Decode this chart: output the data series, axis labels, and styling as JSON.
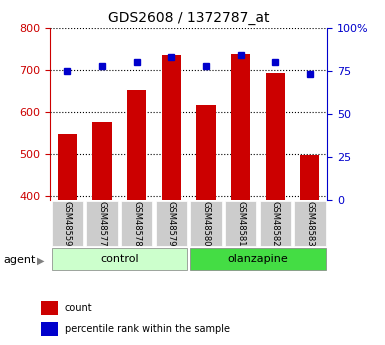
{
  "title": "GDS2608 / 1372787_at",
  "samples": [
    "GSM48559",
    "GSM48577",
    "GSM48578",
    "GSM48579",
    "GSM48580",
    "GSM48581",
    "GSM48582",
    "GSM48583"
  ],
  "counts": [
    548,
    575,
    652,
    735,
    617,
    738,
    692,
    498
  ],
  "percentile_ranks": [
    75,
    78,
    80,
    83,
    78,
    84,
    80,
    73
  ],
  "groups": [
    "control",
    "control",
    "control",
    "control",
    "olanzapine",
    "olanzapine",
    "olanzapine",
    "olanzapine"
  ],
  "ylim_left": [
    390,
    800
  ],
  "ylim_right": [
    0,
    100
  ],
  "bar_color": "#cc0000",
  "dot_color": "#0000cc",
  "grid_color": "#000000",
  "control_color": "#ccffcc",
  "olanzapine_color": "#44dd44",
  "label_bg_color": "#cccccc",
  "yticks_left": [
    400,
    500,
    600,
    700,
    800
  ],
  "yticks_right": [
    0,
    25,
    50,
    75,
    100
  ],
  "legend_count_label": "count",
  "legend_pct_label": "percentile rank within the sample",
  "agent_label": "agent",
  "group_label_control": "control",
  "group_label_olanzapine": "olanzapine"
}
